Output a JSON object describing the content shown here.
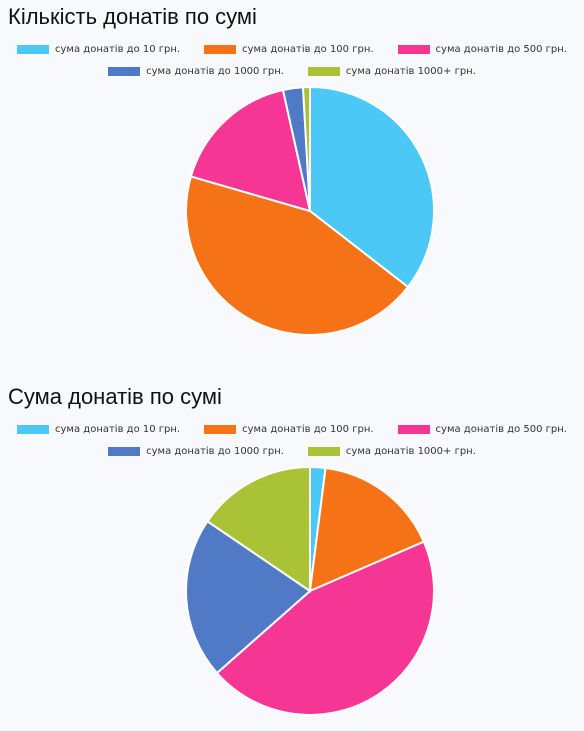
{
  "chart_data": [
    {
      "type": "pie",
      "title": "Кількість донатів по сумі",
      "categories": [
        "сума донатів до 10 грн.",
        "сума донатів до 100 грн.",
        "сума донатів до 500 грн.",
        "сума донатів до 1000 грн.",
        "сума донатів 1000+ грн."
      ],
      "values": [
        35.5,
        44.0,
        17.0,
        2.6,
        0.9
      ],
      "colors": [
        "#4bc8f5",
        "#f57216",
        "#f53695",
        "#5079c6",
        "#aac236"
      ],
      "legend": "top"
    },
    {
      "type": "pie",
      "title": "Сума донатів по сумі",
      "categories": [
        "сума донатів до 10 грн.",
        "сума донатів до 100 грн.",
        "сума донатів до 500 грн.",
        "сума донатів до 1000 грн.",
        "сума донатів 1000+ грн."
      ],
      "values": [
        2.0,
        16.5,
        45.0,
        21.0,
        15.5
      ],
      "colors": [
        "#4bc8f5",
        "#f57216",
        "#f53695",
        "#5079c6",
        "#aac236"
      ],
      "legend": "top"
    }
  ]
}
